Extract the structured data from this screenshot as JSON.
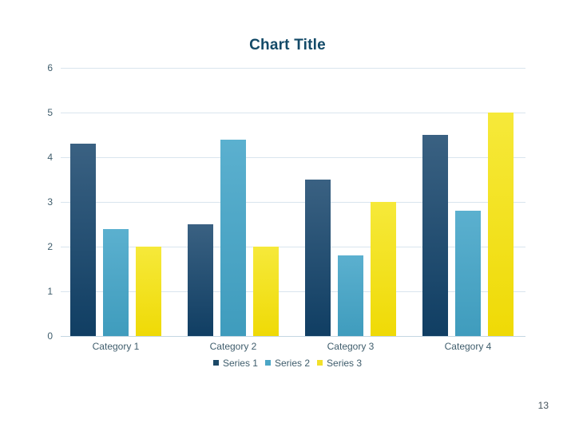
{
  "slide": {
    "page_number": "13"
  },
  "chart_data": {
    "type": "bar",
    "title": "Chart Title",
    "categories": [
      "Category 1",
      "Category 2",
      "Category 3",
      "Category 4"
    ],
    "series": [
      {
        "name": "Series 1",
        "values": [
          4.3,
          2.5,
          3.5,
          4.5
        ],
        "color": "#1B4866",
        "gradient": [
          "#3A6182",
          "#103E63"
        ]
      },
      {
        "name": "Series 2",
        "values": [
          2.4,
          4.4,
          1.8,
          2.8
        ],
        "color": "#4BA6C6",
        "gradient": [
          "#5BB0CF",
          "#3F9CBD"
        ]
      },
      {
        "name": "Series 3",
        "values": [
          2.0,
          2.0,
          3.0,
          5.0
        ],
        "color": "#F2E02A",
        "gradient": [
          "#F6E93A",
          "#EFDA06"
        ]
      }
    ],
    "xlabel": "",
    "ylabel": "",
    "ylim": [
      0,
      6
    ],
    "yticks": [
      0,
      1,
      2,
      3,
      4,
      5,
      6
    ],
    "grid": true,
    "legend_position": "bottom",
    "colors": {
      "title": "#134A68",
      "axis_text": "#3F5D6C",
      "legend_text": "#3F5D6C",
      "gridline": "#D9E5EE",
      "axis_line": "#C4D6E2",
      "page_number": "#45535C",
      "background": "#FFFFFF"
    }
  }
}
